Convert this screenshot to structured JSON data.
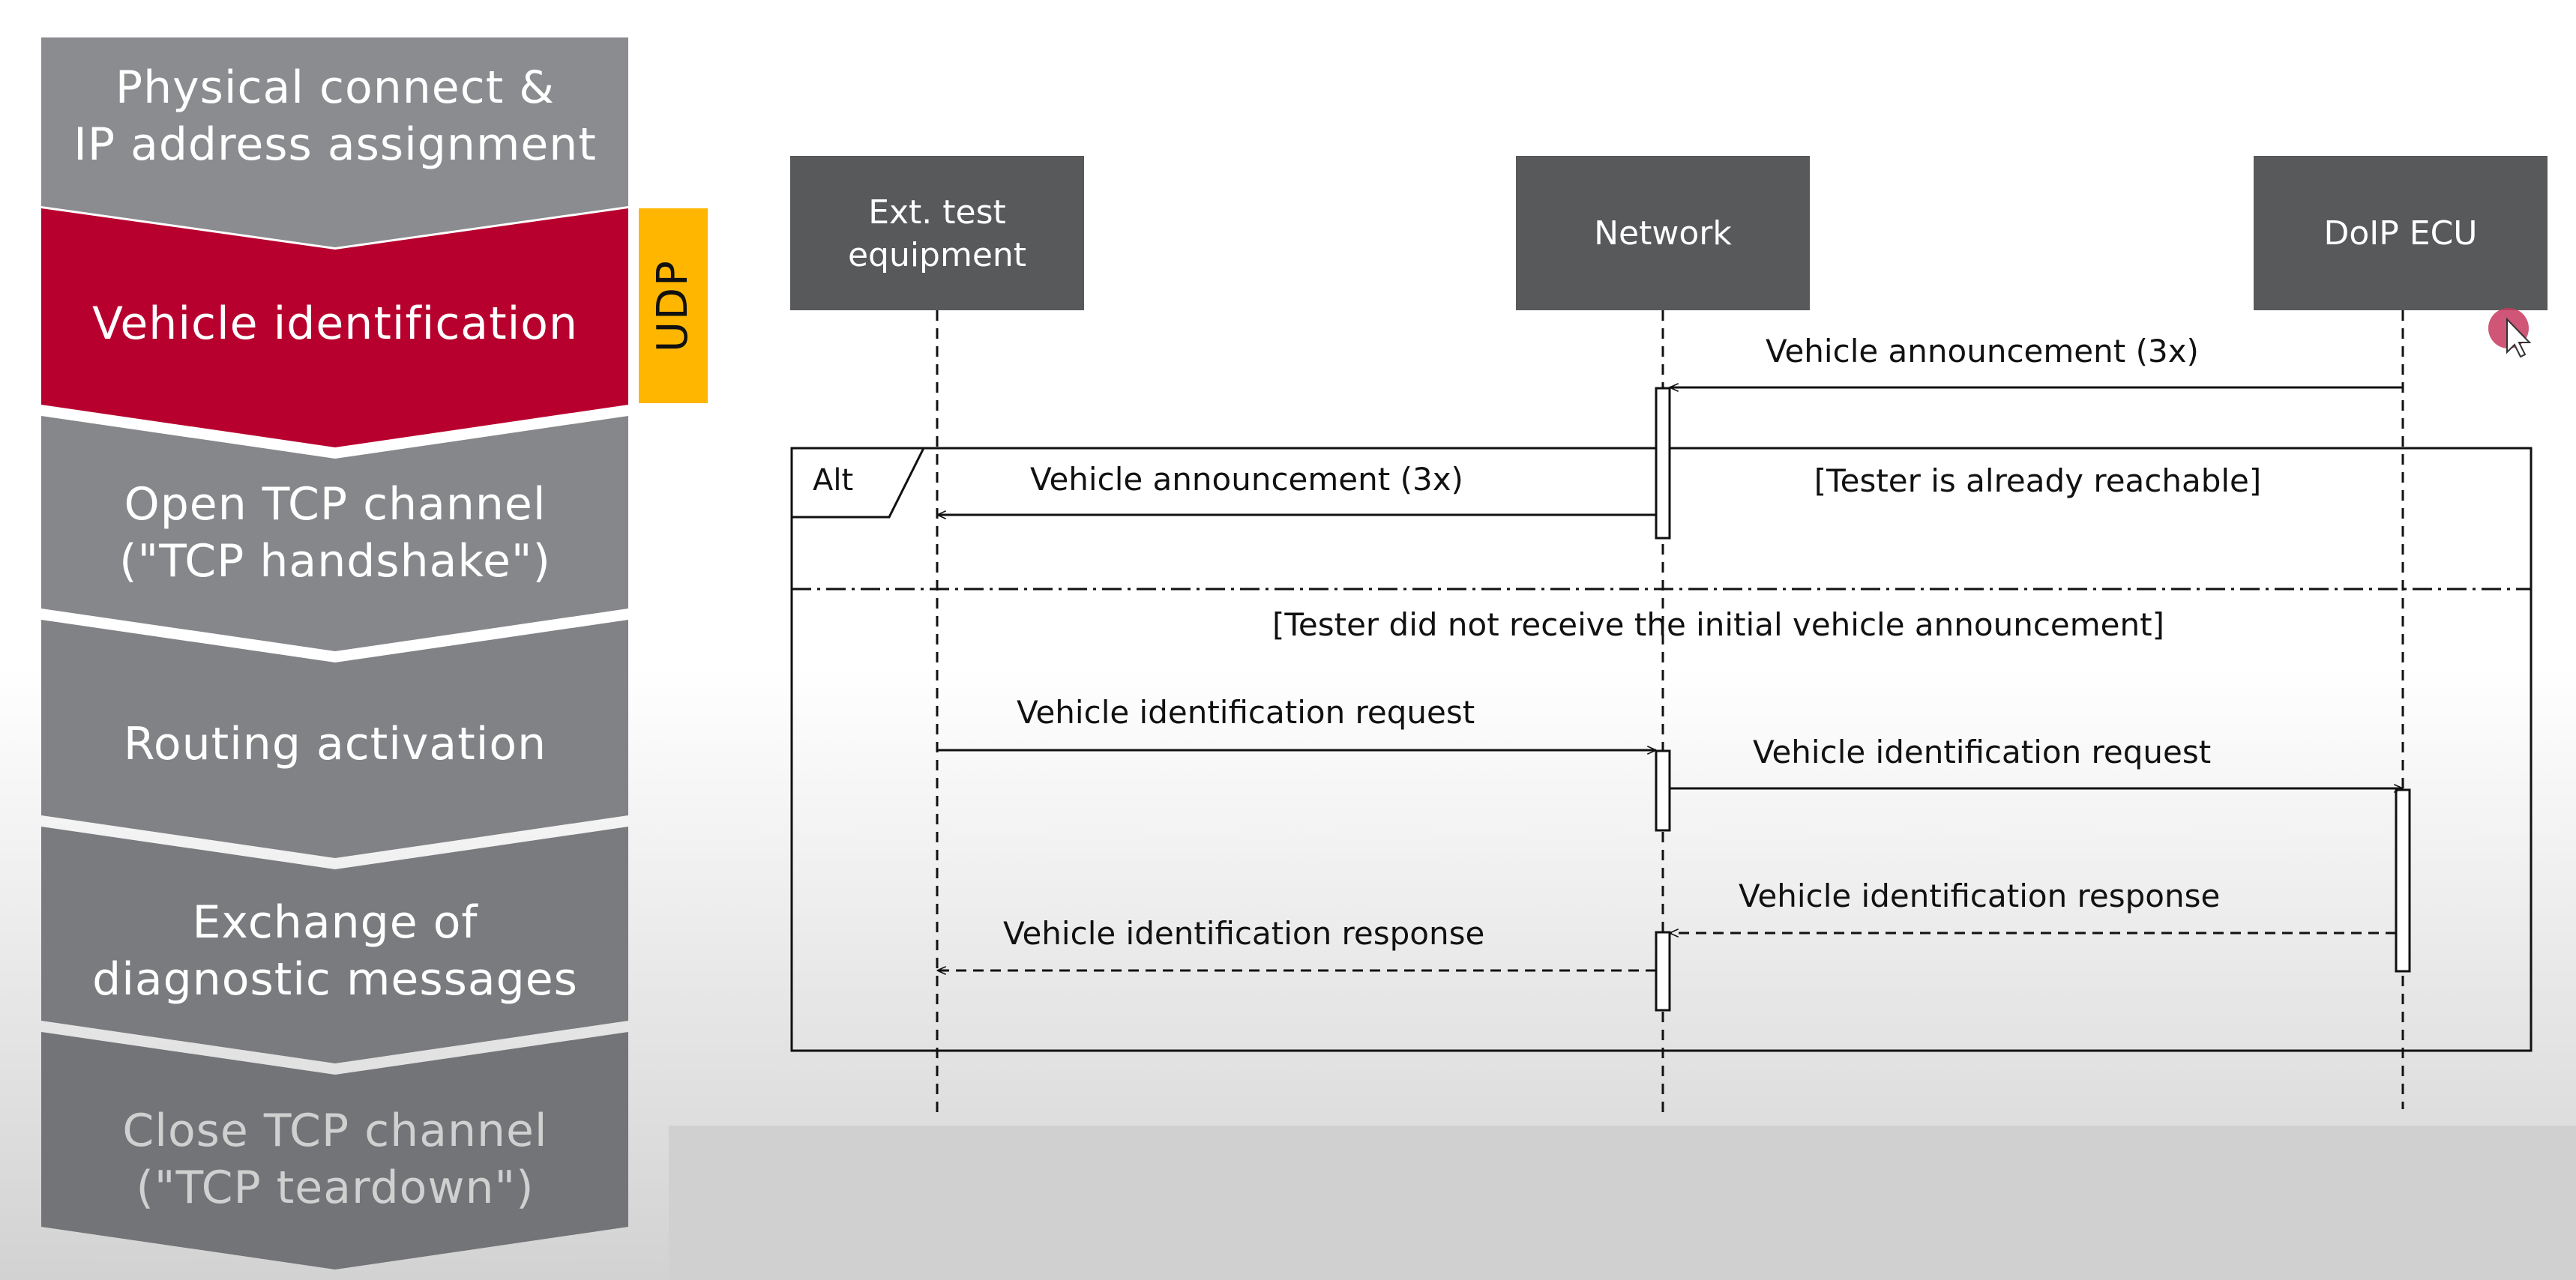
{
  "steps": [
    {
      "lines": [
        "Physical connect &",
        "IP address assignment"
      ],
      "color": "#8a8c8f",
      "state": "normal"
    },
    {
      "lines": [
        "Vehicle identification"
      ],
      "color": "#b8002f",
      "state": "active"
    },
    {
      "lines": [
        "Open TCP channel",
        "(\"TCP handshake\")"
      ],
      "color": "#85878a",
      "state": "normal"
    },
    {
      "lines": [
        "Routing activation"
      ],
      "color": "#808285",
      "state": "normal"
    },
    {
      "lines": [
        "Exchange of",
        "diagnostic messages"
      ],
      "color": "#797b7e",
      "state": "normal"
    },
    {
      "lines": [
        "Close TCP channel",
        "(\"TCP teardown\")"
      ],
      "color": "#727477",
      "state": "faded"
    }
  ],
  "protocol_tag": {
    "label": "UDP",
    "color": "#ffb600"
  },
  "actors": [
    {
      "lines": [
        "Ext. test",
        "equipment"
      ]
    },
    {
      "lines": [
        "Network"
      ]
    },
    {
      "lines": [
        "DoIP ECU"
      ]
    }
  ],
  "alt_fragment": {
    "label": "Alt",
    "conditions": [
      "[Tester is already reachable]",
      "[Tester did not receive the initial vehicle announcement]"
    ]
  },
  "messages": [
    {
      "from": 2,
      "to": 1,
      "label": "Vehicle announcement (3x)",
      "dashed": false
    },
    {
      "from": 1,
      "to": 0,
      "label": "Vehicle announcement (3x)",
      "dashed": false
    },
    {
      "from": 0,
      "to": 1,
      "label": "Vehicle identification request",
      "dashed": false
    },
    {
      "from": 1,
      "to": 2,
      "label": "Vehicle identification request",
      "dashed": false
    },
    {
      "from": 2,
      "to": 1,
      "label": "Vehicle identification response",
      "dashed": true
    },
    {
      "from": 1,
      "to": 0,
      "label": "Vehicle identification response",
      "dashed": true
    }
  ],
  "colors": {
    "actor_box": "#58595b",
    "cursor": "#c8385f"
  }
}
